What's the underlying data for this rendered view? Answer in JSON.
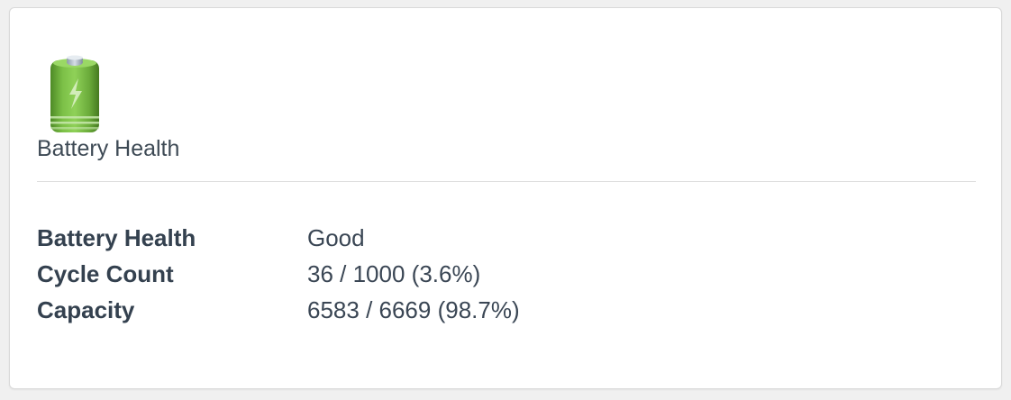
{
  "card": {
    "icon": "battery-icon",
    "title": "Battery Health",
    "accent_color": "#6aaa3a"
  },
  "rows": [
    {
      "label": "Battery Health",
      "value": "Good"
    },
    {
      "label": "Cycle Count",
      "value": "36 / 1000 (3.6%)"
    },
    {
      "label": "Capacity",
      "value": "6583 / 6669 (98.7%)"
    }
  ]
}
